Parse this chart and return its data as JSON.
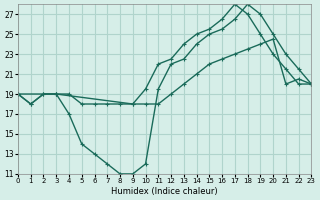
{
  "xlabel": "Humidex (Indice chaleur)",
  "ylabel": "",
  "bg_color": "#d6eee8",
  "grid_color": "#b0d4cc",
  "line_color": "#1a6b5a",
  "xlim": [
    0,
    23
  ],
  "ylim": [
    11,
    28
  ],
  "xticks": [
    0,
    1,
    2,
    3,
    4,
    5,
    6,
    7,
    8,
    9,
    10,
    11,
    12,
    13,
    14,
    15,
    16,
    17,
    18,
    19,
    20,
    21,
    22,
    23
  ],
  "yticks": [
    11,
    13,
    15,
    17,
    19,
    21,
    23,
    25,
    27
  ],
  "line1_x": [
    0,
    1,
    2,
    3,
    4,
    5,
    6,
    7,
    8,
    9,
    10,
    11,
    12,
    13,
    14,
    15,
    16,
    17,
    18,
    19,
    20,
    21,
    22,
    23
  ],
  "line1_y": [
    19,
    18,
    19,
    19,
    17,
    14,
    13,
    12,
    11,
    11,
    12,
    19.5,
    22,
    22.5,
    24,
    25,
    25.5,
    26.5,
    28,
    27,
    25,
    23,
    21.5,
    20
  ],
  "line2_x": [
    0,
    1,
    2,
    3,
    4,
    5,
    6,
    7,
    8,
    9,
    10,
    11,
    12,
    13,
    14,
    15,
    16,
    17,
    18,
    19,
    20,
    21,
    22,
    23
  ],
  "line2_y": [
    19,
    18,
    19,
    19,
    19,
    18,
    18,
    18,
    18,
    18,
    18,
    18,
    19,
    20,
    21,
    22,
    22.5,
    23,
    23.5,
    24,
    24.5,
    20,
    20.5,
    20
  ],
  "line3_x": [
    0,
    3,
    9,
    10,
    11,
    12,
    13,
    14,
    15,
    16,
    17,
    18,
    19,
    20,
    21,
    22,
    23
  ],
  "line3_y": [
    19,
    19,
    18,
    19.5,
    22,
    22.5,
    24,
    25,
    25.5,
    26.5,
    28,
    27,
    25,
    23,
    21.5,
    20,
    20
  ]
}
